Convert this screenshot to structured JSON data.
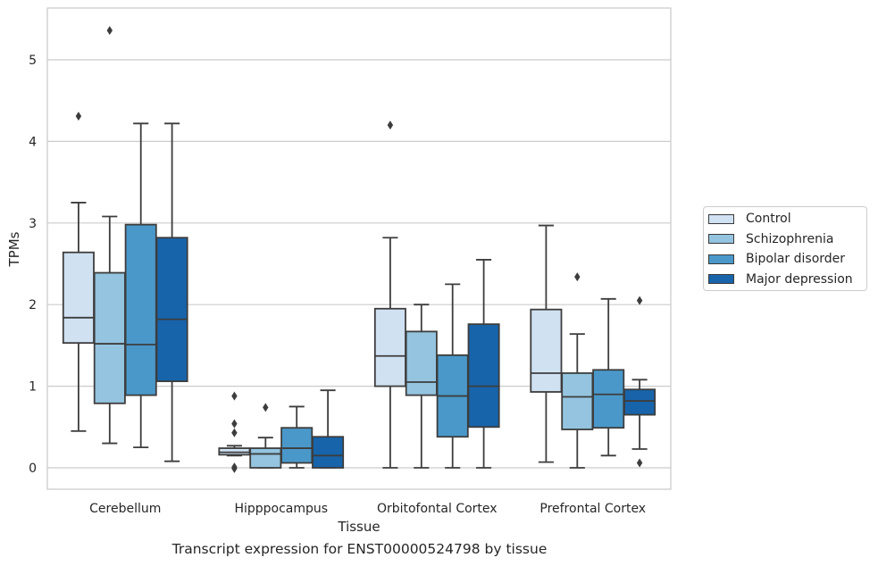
{
  "chart_data": {
    "type": "boxplot",
    "caption": "Transcript expression for ENST00000524798 by tissue",
    "xlabel": "Tissue",
    "ylabel": "TPMs",
    "ylim": [
      -0.25,
      5.65
    ],
    "yticks": [
      0,
      1,
      2,
      3,
      4,
      5
    ],
    "grid": "horizontal",
    "legend_position": "right",
    "categories": [
      "Cerebellum",
      "Hipppocampus",
      "Orbitofontal Cortex",
      "Prefrontal Cortex"
    ],
    "series": [
      {
        "name": "Control",
        "color": "#d0e1f2",
        "boxes": [
          {
            "whislo": 0.45,
            "q1": 1.53,
            "med": 1.84,
            "q3": 2.64,
            "whishi": 3.25,
            "fliers": [
              4.31
            ]
          },
          {
            "whislo": 0.15,
            "q1": 0.16,
            "med": 0.19,
            "q3": 0.24,
            "whishi": 0.27,
            "fliers": [
              0.88,
              0.54,
              0.43,
              0.01,
              -0.01
            ]
          },
          {
            "whislo": 0.0,
            "q1": 1.0,
            "med": 1.37,
            "q3": 1.95,
            "whishi": 2.82,
            "fliers": [
              4.2
            ]
          },
          {
            "whislo": 0.07,
            "q1": 0.93,
            "med": 1.16,
            "q3": 1.94,
            "whishi": 2.97,
            "fliers": []
          }
        ]
      },
      {
        "name": "Schizophrenia",
        "color": "#94c4df",
        "boxes": [
          {
            "whislo": 0.3,
            "q1": 0.79,
            "med": 1.52,
            "q3": 2.39,
            "whishi": 3.08,
            "fliers": [
              5.36
            ]
          },
          {
            "whislo": 0.0,
            "q1": 0.0,
            "med": 0.17,
            "q3": 0.24,
            "whishi": 0.37,
            "fliers": [
              0.74
            ]
          },
          {
            "whislo": 0.0,
            "q1": 0.89,
            "med": 1.05,
            "q3": 1.67,
            "whishi": 2.0,
            "fliers": []
          },
          {
            "whislo": 0.0,
            "q1": 0.47,
            "med": 0.87,
            "q3": 1.16,
            "whishi": 1.64,
            "fliers": [
              2.34
            ]
          }
        ]
      },
      {
        "name": "Bipolar disorder",
        "color": "#4a98c9",
        "boxes": [
          {
            "whislo": 0.25,
            "q1": 0.89,
            "med": 1.51,
            "q3": 2.98,
            "whishi": 4.22,
            "fliers": []
          },
          {
            "whislo": 0.0,
            "q1": 0.06,
            "med": 0.24,
            "q3": 0.49,
            "whishi": 0.75,
            "fliers": []
          },
          {
            "whislo": 0.0,
            "q1": 0.38,
            "med": 0.88,
            "q3": 1.38,
            "whishi": 2.25,
            "fliers": []
          },
          {
            "whislo": 0.15,
            "q1": 0.49,
            "med": 0.9,
            "q3": 1.2,
            "whishi": 2.07,
            "fliers": []
          }
        ]
      },
      {
        "name": "Major depression",
        "color": "#1764ab",
        "boxes": [
          {
            "whislo": 0.08,
            "q1": 1.06,
            "med": 1.82,
            "q3": 2.82,
            "whishi": 4.22,
            "fliers": []
          },
          {
            "whislo": 0.0,
            "q1": 0.0,
            "med": 0.15,
            "q3": 0.38,
            "whishi": 0.95,
            "fliers": []
          },
          {
            "whislo": 0.0,
            "q1": 0.5,
            "med": 1.0,
            "q3": 1.76,
            "whishi": 2.55,
            "fliers": []
          },
          {
            "whislo": 0.23,
            "q1": 0.65,
            "med": 0.82,
            "q3": 0.96,
            "whishi": 1.08,
            "fliers": [
              2.05,
              0.06
            ]
          }
        ]
      }
    ]
  }
}
